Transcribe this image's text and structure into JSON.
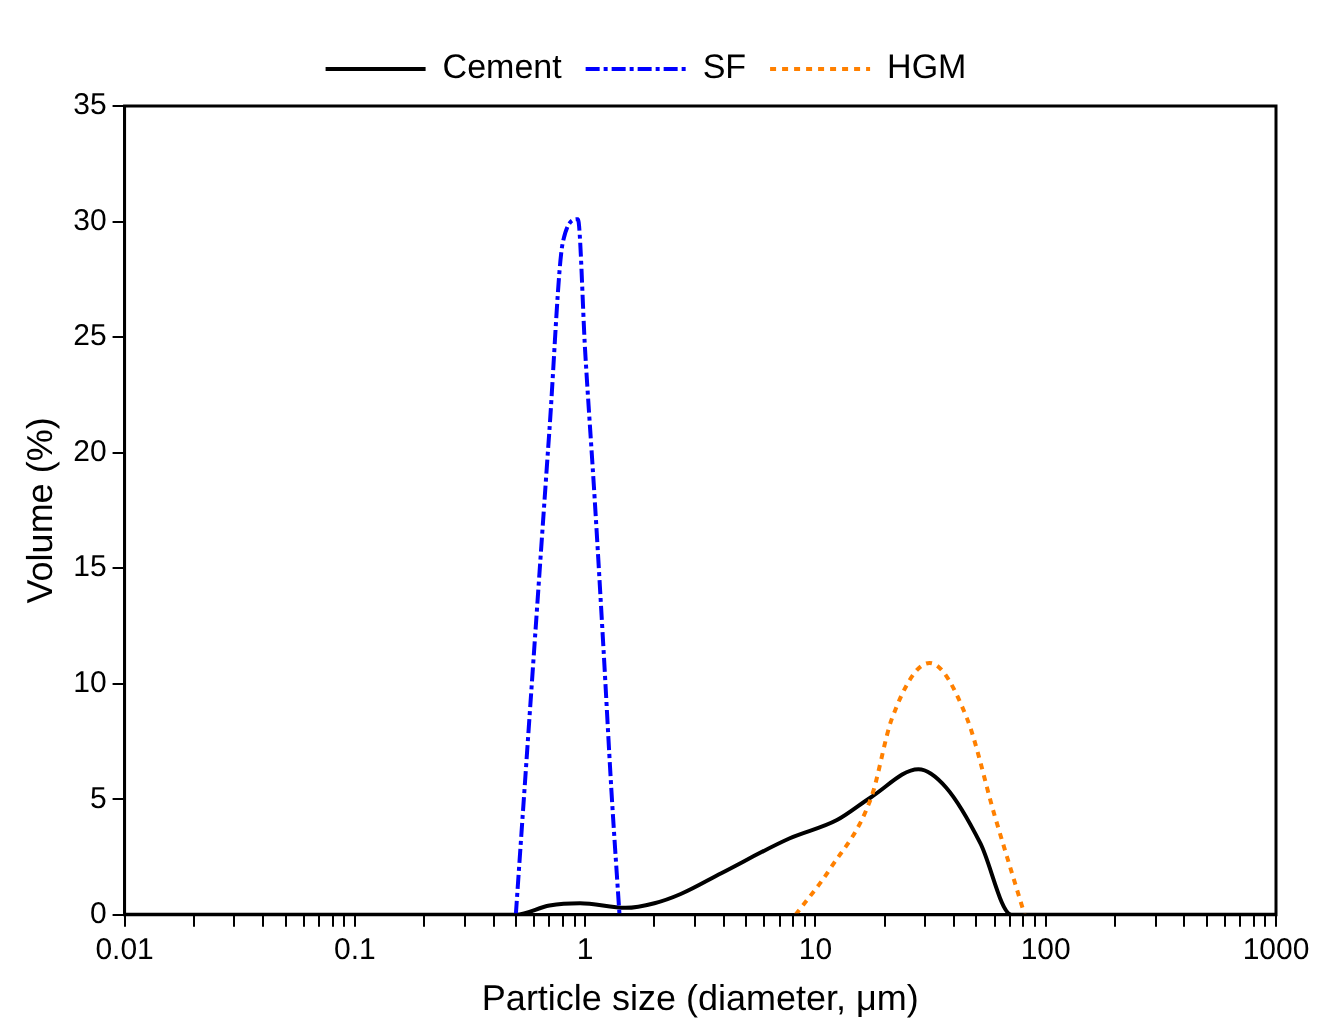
{
  "chart_data": {
    "type": "line",
    "xlabel": "Particle size (diameter, μm)",
    "ylabel": "Volume (%)",
    "log": "x",
    "xlim": [
      0.01,
      1000
    ],
    "ylim": [
      0,
      35
    ],
    "xticks": [
      0.01,
      {
        "value": 0.02,
        "label": null
      },
      {
        "value": 0.03,
        "label": null
      },
      {
        "value": 0.04,
        "label": null
      },
      {
        "value": 0.05,
        "label": null
      },
      {
        "value": 0.06,
        "label": null
      },
      {
        "value": 0.07,
        "label": null
      },
      {
        "value": 0.08,
        "label": null
      },
      {
        "value": 0.09,
        "label": null
      },
      0.1,
      {
        "value": 0.2,
        "label": null
      },
      {
        "value": 0.3,
        "label": null
      },
      {
        "value": 0.4,
        "label": null
      },
      {
        "value": 0.5,
        "label": null
      },
      {
        "value": 0.6,
        "label": null
      },
      {
        "value": 0.7,
        "label": null
      },
      {
        "value": 0.8,
        "label": null
      },
      {
        "value": 0.9,
        "label": null
      },
      1,
      {
        "value": 2,
        "label": null
      },
      {
        "value": 3,
        "label": null
      },
      {
        "value": 4,
        "label": null
      },
      {
        "value": 5,
        "label": null
      },
      {
        "value": 6,
        "label": null
      },
      {
        "value": 7,
        "label": null
      },
      {
        "value": 8,
        "label": null
      },
      {
        "value": 9,
        "label": null
      },
      10,
      {
        "value": 20,
        "label": null
      },
      {
        "value": 30,
        "label": null
      },
      {
        "value": 40,
        "label": null
      },
      {
        "value": 50,
        "label": null
      },
      {
        "value": 60,
        "label": null
      },
      {
        "value": 70,
        "label": null
      },
      {
        "value": 80,
        "label": null
      },
      {
        "value": 90,
        "label": null
      },
      100,
      {
        "value": 200,
        "label": null
      },
      {
        "value": 300,
        "label": null
      },
      {
        "value": 400,
        "label": null
      },
      {
        "value": 500,
        "label": null
      },
      {
        "value": 600,
        "label": null
      },
      {
        "value": 700,
        "label": null
      },
      {
        "value": 800,
        "label": null
      },
      {
        "value": 900,
        "label": null
      },
      1000
    ],
    "yticks": [
      0,
      5,
      10,
      15,
      20,
      25,
      30,
      35
    ],
    "grid": false,
    "legend": "top",
    "marker": "none",
    "series": [
      {
        "name": "Cement",
        "color": "#000000",
        "line_style": "solid",
        "x": [
          0.01,
          0.5,
          0.7,
          0.95,
          1.5,
          2,
          2.6,
          3.9,
          7.7,
          12.4,
          17.5,
          28,
          37,
          52,
          71,
          1000
        ],
        "values": [
          0,
          0,
          0.4,
          0.5,
          0.3,
          0.5,
          0.9,
          1.8,
          3.3,
          4.1,
          5.1,
          6.3,
          5.5,
          3.1,
          0,
          0
        ]
      },
      {
        "name": "SF",
        "color": "#0000ff",
        "line_style": "dashed",
        "x": [
          0.5,
          0.6,
          0.7,
          0.8,
          0.93,
          1,
          1.1,
          1.2,
          1.3,
          1.41
        ],
        "values": [
          0,
          11.4,
          21,
          29.1,
          30.1,
          24.4,
          18,
          11.6,
          5.4,
          0
        ]
      },
      {
        "name": "HGM",
        "color": "#ff8000",
        "line_style": "dotted",
        "x": [
          8.2,
          11.6,
          17.5,
          21.5,
          31.3,
          45.5,
          60,
          81
        ],
        "values": [
          0,
          2,
          5.1,
          8.5,
          10.9,
          8.5,
          4.3,
          0
        ]
      }
    ]
  }
}
